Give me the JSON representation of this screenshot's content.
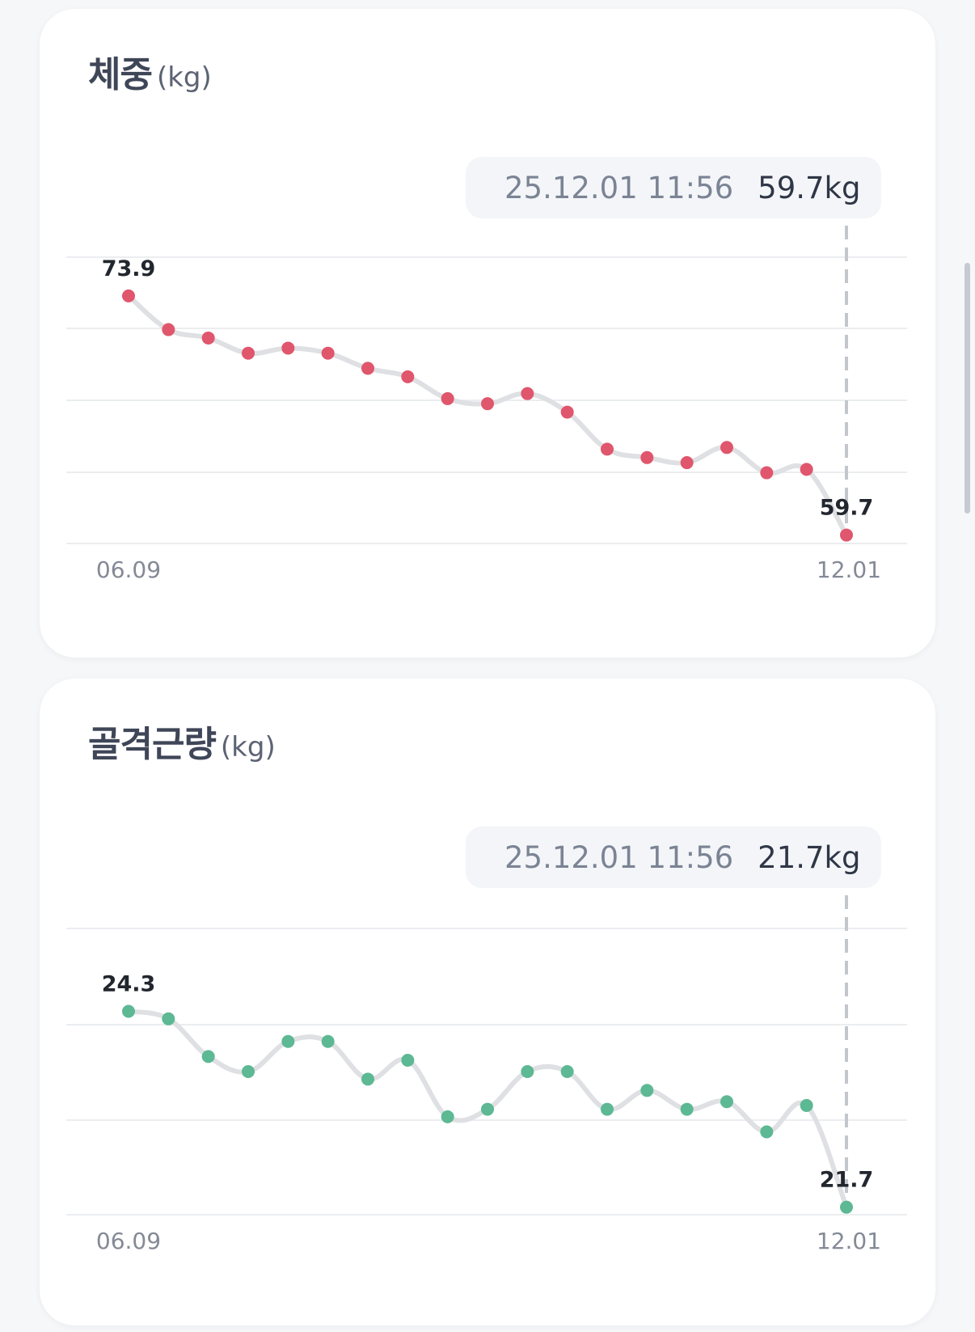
{
  "cards": [
    {
      "id": "weight",
      "title": "체중",
      "unit": "(kg)",
      "tooltip": {
        "timestamp": "25.12.01 11:56",
        "value": "59.7kg"
      },
      "color": "#e0566c"
    },
    {
      "id": "muscle",
      "title": "골격근량",
      "unit": "(kg)",
      "tooltip": {
        "timestamp": "25.12.01 11:56",
        "value": "21.7kg"
      },
      "color": "#5db894"
    }
  ],
  "chart_data": [
    {
      "type": "line",
      "x_labels": [
        "06.09",
        "12.01"
      ],
      "values": [
        73.9,
        71.9,
        71.4,
        70.5,
        70.8,
        70.5,
        69.6,
        69.1,
        67.8,
        67.5,
        68.1,
        67.0,
        64.8,
        64.3,
        64.0,
        64.9,
        63.4,
        63.6,
        59.7
      ],
      "first_label": "73.9",
      "last_label": "59.7",
      "ylim": [
        59.2,
        76.2
      ],
      "grid": true,
      "selected_index": 18
    },
    {
      "type": "line",
      "x_labels": [
        "06.09",
        "12.01"
      ],
      "values": [
        24.3,
        24.2,
        23.7,
        23.5,
        23.9,
        23.9,
        23.4,
        23.65,
        22.9,
        23.0,
        23.5,
        23.5,
        23.0,
        23.25,
        23.0,
        23.1,
        22.7,
        23.05,
        21.7
      ],
      "first_label": "24.3",
      "last_label": "21.7",
      "ylim": [
        21.6,
        25.4
      ],
      "grid": true,
      "selected_index": 18
    }
  ]
}
